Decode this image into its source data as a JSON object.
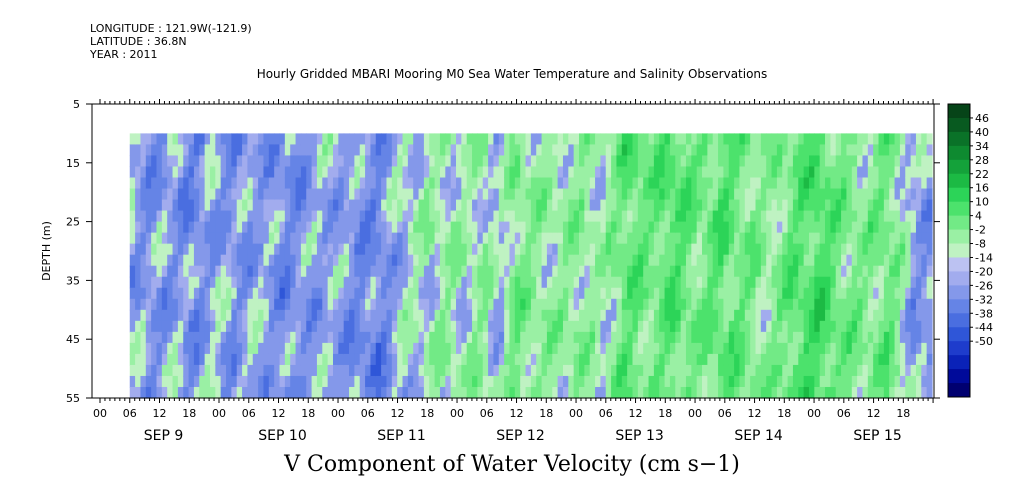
{
  "header": {
    "longitude": "LONGITUDE : 121.9W(-121.9)",
    "latitude": "LATITUDE : 36.8N",
    "year": "YEAR : 2011",
    "title": "Hourly Gridded MBARI Mooring M0 Sea Water Temperature and Salinity Observations"
  },
  "chart_data": {
    "type": "heatmap",
    "title": "Hourly Gridded MBARI Mooring M0 Sea Water Temperature and Salinity Observations",
    "xlabel": "",
    "ylabel": "DEPTH (m)",
    "variable_label": "V Component of Water Velocity (cm s−1)",
    "y_ticks": [
      5,
      15,
      25,
      35,
      45,
      55
    ],
    "ylim": [
      5,
      55
    ],
    "y_inverted": true,
    "data_depth_range": [
      10,
      55
    ],
    "x_hour_ticks": [
      "00",
      "06",
      "12",
      "18",
      "00",
      "06",
      "12",
      "18",
      "00",
      "06",
      "12",
      "18",
      "00",
      "06",
      "12",
      "18",
      "00",
      "06",
      "12",
      "18",
      "00",
      "06",
      "12",
      "18",
      "00",
      "06",
      "12",
      "18"
    ],
    "x_date_labels": [
      "SEP  9",
      "SEP 10",
      "SEP 11",
      "SEP 12",
      "SEP 13",
      "SEP 14",
      "SEP 15"
    ],
    "data_time_start_hour": 6,
    "colorbar": {
      "levels": [
        -50,
        -44,
        -38,
        -32,
        -26,
        -20,
        -14,
        -8,
        -2,
        4,
        10,
        16,
        22,
        28,
        34,
        40,
        46
      ],
      "negative_colors": [
        "#000070",
        "#000a9a",
        "#0a22b8",
        "#1e3ccc",
        "#2f56d8",
        "#4a6ee0",
        "#6584e6",
        "#8498ea",
        "#a2acee",
        "#bcc2f2"
      ],
      "positive_colors": [
        "#bff2c2",
        "#9af0a4",
        "#72ea86",
        "#4ce26c",
        "#2cd458",
        "#1cba44",
        "#14a23a",
        "#0e8a30",
        "#0a7228",
        "#085a20",
        "#064418"
      ]
    },
    "time_profile": [
      [
        0.0,
        -3
      ],
      [
        0.02,
        -6
      ],
      [
        0.05,
        -4
      ],
      [
        0.08,
        -8
      ],
      [
        0.1,
        -2
      ],
      [
        0.13,
        -6
      ],
      [
        0.16,
        -3
      ],
      [
        0.19,
        -8
      ],
      [
        0.22,
        -5
      ],
      [
        0.25,
        -2
      ],
      [
        0.28,
        -7
      ],
      [
        0.31,
        -10
      ],
      [
        0.34,
        1
      ],
      [
        0.37,
        4
      ],
      [
        0.4,
        6
      ],
      [
        0.42,
        3
      ],
      [
        0.44,
        8
      ],
      [
        0.46,
        -2
      ],
      [
        0.48,
        12
      ],
      [
        0.5,
        9
      ],
      [
        0.53,
        6
      ],
      [
        0.56,
        10
      ],
      [
        0.59,
        3
      ],
      [
        0.62,
        16
      ],
      [
        0.65,
        12
      ],
      [
        0.68,
        18
      ],
      [
        0.71,
        11
      ],
      [
        0.74,
        17
      ],
      [
        0.77,
        12
      ],
      [
        0.8,
        7
      ],
      [
        0.83,
        16
      ],
      [
        0.86,
        20
      ],
      [
        0.89,
        13
      ],
      [
        0.92,
        9
      ],
      [
        0.95,
        14
      ],
      [
        0.98,
        -4
      ],
      [
        1.0,
        -6
      ]
    ]
  },
  "bottom_title": "V Component of Water Velocity (cm s−1)"
}
